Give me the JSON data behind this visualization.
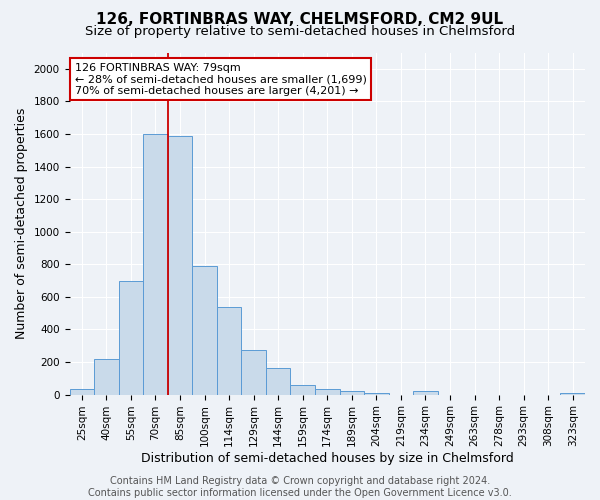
{
  "title_line1": "126, FORTINBRAS WAY, CHELMSFORD, CM2 9UL",
  "title_line2": "Size of property relative to semi-detached houses in Chelmsford",
  "xlabel": "Distribution of semi-detached houses by size in Chelmsford",
  "ylabel": "Number of semi-detached properties",
  "categories": [
    "25sqm",
    "40sqm",
    "55sqm",
    "70sqm",
    "85sqm",
    "100sqm",
    "114sqm",
    "129sqm",
    "144sqm",
    "159sqm",
    "174sqm",
    "189sqm",
    "204sqm",
    "219sqm",
    "234sqm",
    "249sqm",
    "263sqm",
    "278sqm",
    "293sqm",
    "308sqm",
    "323sqm"
  ],
  "values": [
    35,
    220,
    700,
    1600,
    1590,
    790,
    535,
    275,
    165,
    60,
    35,
    20,
    10,
    0,
    20,
    0,
    0,
    0,
    0,
    0,
    10
  ],
  "bar_color": "#c9daea",
  "bar_edge_color": "#5b9bd5",
  "red_line_x": 3.5,
  "annotation_text_line1": "126 FORTINBRAS WAY: 79sqm",
  "annotation_text_line2": "← 28% of semi-detached houses are smaller (1,699)",
  "annotation_text_line3": "70% of semi-detached houses are larger (4,201) →",
  "annotation_box_facecolor": "#ffffff",
  "annotation_box_edgecolor": "#cc0000",
  "yticks": [
    0,
    200,
    400,
    600,
    800,
    1000,
    1200,
    1400,
    1600,
    1800,
    2000
  ],
  "ylim": [
    0,
    2100
  ],
  "background_color": "#eef2f7",
  "grid_color": "#ffffff",
  "title_fontsize": 11,
  "subtitle_fontsize": 9.5,
  "axis_label_fontsize": 9,
  "tick_fontsize": 7.5,
  "annot_fontsize": 8,
  "footer_fontsize": 7,
  "footer_line1": "Contains HM Land Registry data © Crown copyright and database right 2024.",
  "footer_line2": "Contains public sector information licensed under the Open Government Licence v3.0."
}
